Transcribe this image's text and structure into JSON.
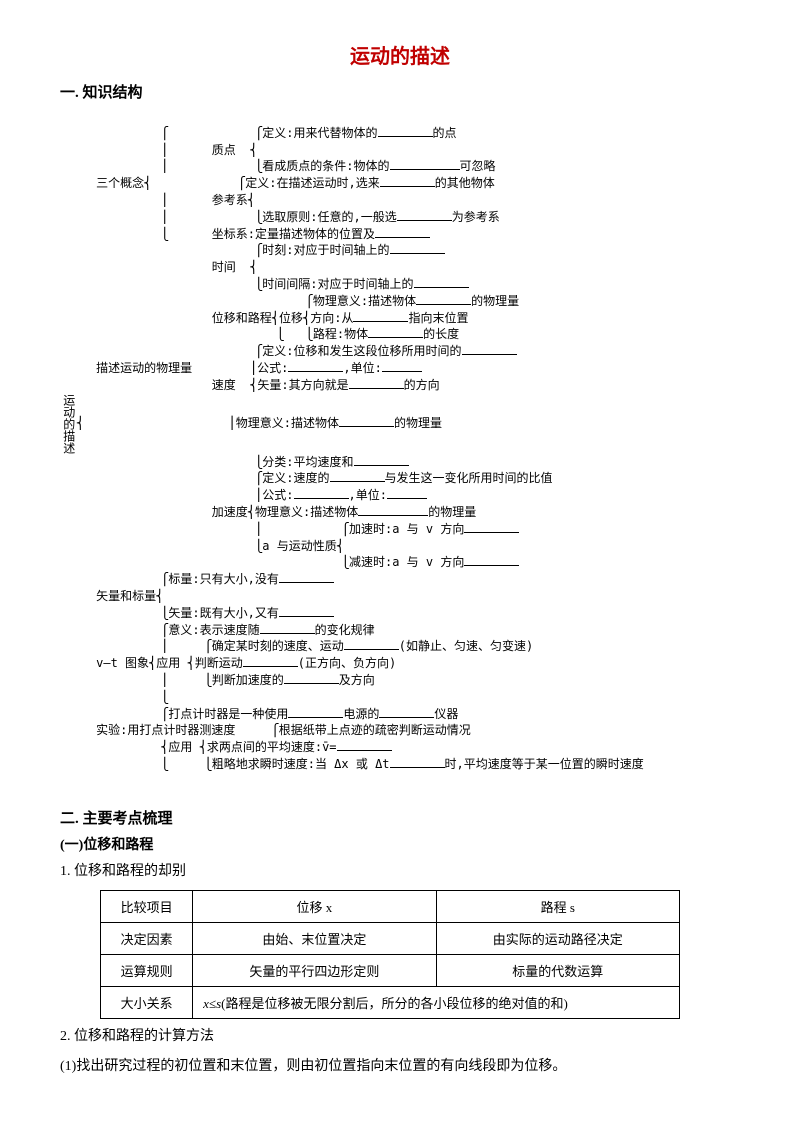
{
  "title": "运动的描述",
  "sections": {
    "s1": "一. 知识结构",
    "s2": "二. 主要考点梳理",
    "sub1": "(一)位移和路程",
    "p1": "1. 位移和路程的却别",
    "p2": "2. 位移和路程的计算方法",
    "p2line": "(1)找出研究过程的初位置和末位置，则由初位置指向末位置的有向线段即为位移。"
  },
  "diagram": {
    "root": "运动的描述",
    "b1": {
      "label": "三个概念",
      "zhidian_label": "质点",
      "zhidian_l1a": "定义:用来代替物体的",
      "zhidian_l1b": "的点",
      "zhidian_l2a": "看成质点的条件:物体的",
      "zhidian_l2b": "可忽略",
      "cankao_label": "参考系",
      "cankao_l1a": "定义:在描述运动时,选来",
      "cankao_l1b": "的其他物体",
      "cankao_l2a": "选取原则:任意的,一般选",
      "cankao_l2b": "为参考系",
      "zuobiao_a": "坐标系:定量描述物体的位置及"
    },
    "b2": {
      "label": "描述运动的物理量",
      "time_label": "时间",
      "time_l1a": "时刻:对应于时间轴上的",
      "time_l2a": "时间间隔:对应于时间轴上的",
      "disp_label": "位移和路程",
      "disp_sub": "位移",
      "disp_l1a": "物理意义:描述物体",
      "disp_l1b": "的物理量",
      "disp_l2a": "方向:从",
      "disp_l2b": "指向末位置",
      "disp_l3a": "路程:物体",
      "disp_l3b": "的长度",
      "vel_label": "速度",
      "vel_l1a": "定义:位移和发生这段位移所用时间的",
      "vel_l2a": "公式:",
      "vel_l2b": ",单位:",
      "vel_l3a": "矢量:其方向就是",
      "vel_l3b": "的方向",
      "vel_l4a": "物理意义:描述物体",
      "vel_l4b": "的物理量",
      "vel_l5a": "分类:平均速度和",
      "acc_label": "加速度",
      "acc_l1a": "定义:速度的",
      "acc_l1b": "与发生这一变化所用时间的比值",
      "acc_l2a": "公式:",
      "acc_l2b": ",单位:",
      "acc_l3a": "物理意义:描述物体",
      "acc_l3b": "的物理量",
      "acc_sub": "a 与运动性质",
      "acc_l4a": "加速时:a 与 v 方向",
      "acc_l5a": "减速时:a 与 v 方向"
    },
    "b3": {
      "label": "矢量和标量",
      "l1a": "标量:只有大小,没有",
      "l2a": "矢量:既有大小,又有"
    },
    "b4": {
      "label": "v—t 图象",
      "l1a": "意义:表示速度随",
      "l1b": "的变化规律",
      "app": "应用",
      "l2a": "确定某时刻的速度、运动",
      "l2b": "(如静止、匀速、匀变速)",
      "l3a": "判断运动",
      "l3b": "(正方向、负方向)",
      "l4a": "判断加速度的",
      "l4b": "及方向"
    },
    "b5": {
      "label": "实验:用打点计时器测速度",
      "l1a": "打点计时器是一种使用",
      "l1b": "电源的",
      "l1c": "仪器",
      "app": "应用",
      "l2a": "根据纸带上点迹的疏密判断运动情况",
      "l3a": "求两点间的平均速度:v̄=",
      "l4a": "粗略地求瞬时速度:当 Δx 或 Δt",
      "l4b": "时,平均速度等于某一位置的瞬时速度"
    }
  },
  "table": {
    "h1": "比较项目",
    "h2": "位移 x",
    "h3": "路程 s",
    "r1c1": "决定因素",
    "r1c2": "由始、末位置决定",
    "r1c3": "由实际的运动路径决定",
    "r2c1": "运算规则",
    "r2c2": "矢量的平行四边形定则",
    "r2c3": "标量的代数运算",
    "r3c1": "大小关系",
    "r3c2": "x≤s(路程是位移被无限分割后，所分的各小段位移的绝对值的和)"
  }
}
